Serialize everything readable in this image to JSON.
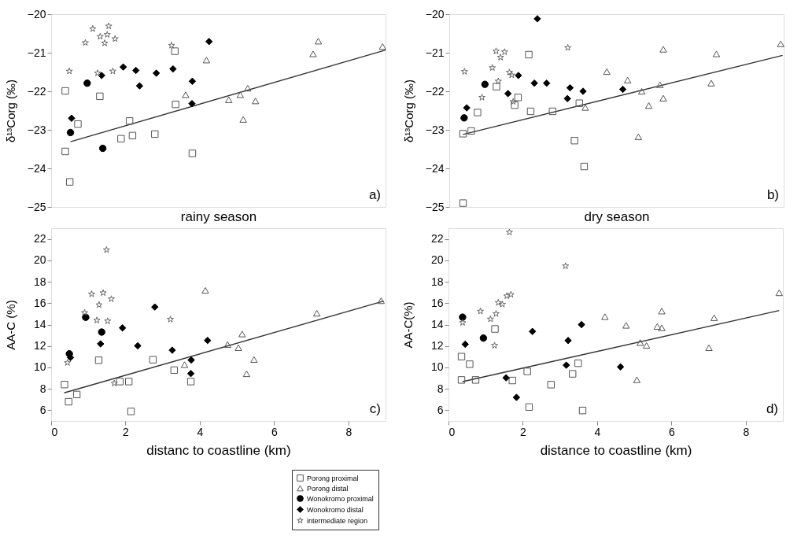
{
  "chart_data": [
    {
      "type": "scatter",
      "xlabel": "rainy season",
      "ylabel": "δ¹³Corg (‰)",
      "annotations": [
        "a)"
      ],
      "xlim": [
        0,
        9
      ],
      "xticks": [
        0,
        2,
        4,
        6,
        8
      ],
      "ylim": [
        -25,
        -20
      ],
      "yticks": [
        -25,
        -24,
        -23,
        -22,
        -21,
        -20
      ],
      "tick_labels": "y",
      "grid": false,
      "legend": false,
      "series": [
        {
          "color": "#555555",
          "marker": "square",
          "x": [
            0.38,
            0.38,
            0.5,
            0.72,
            1.31,
            2.11,
            1.88,
            2.19,
            2.79,
            3.33,
            3.35,
            3.8
          ],
          "values": [
            -21.99,
            -23.56,
            -24.35,
            -22.85,
            -22.13,
            -22.77,
            -23.23,
            -23.15,
            -23.11,
            -20.96,
            -22.34,
            -23.61
          ]
        },
        {
          "color": "#555555",
          "marker": "triangle",
          "x": [
            4.18,
            3.62,
            4.78,
            5.09,
            5.29,
            5.17,
            5.5,
            7.05,
            7.19,
            8.92
          ],
          "values": [
            -21.19,
            -22.09,
            -22.22,
            -22.09,
            -21.92,
            -22.73,
            -22.25,
            -21.03,
            -20.7,
            -20.84
          ]
        },
        {
          "color": "#000000",
          "marker": "circle",
          "x": [
            0.97,
            0.52,
            1.39
          ],
          "values": [
            -21.79,
            -23.07,
            -23.48
          ]
        },
        {
          "color": "#000000",
          "marker": "diamond",
          "x": [
            0.55,
            1.36,
            1.94,
            2.28,
            2.38,
            2.83,
            3.28,
            3.8,
            3.79,
            4.25
          ],
          "values": [
            -22.7,
            -21.59,
            -21.37,
            -21.46,
            -21.86,
            -21.53,
            -21.42,
            -21.74,
            -22.32,
            -20.71
          ]
        },
        {
          "color": "#666666",
          "marker": "star",
          "x": [
            0.49,
            0.92,
            1.12,
            1.32,
            1.44,
            1.51,
            1.55,
            1.72,
            1.25,
            1.66,
            3.24
          ],
          "values": [
            -21.48,
            -20.74,
            -20.38,
            -20.58,
            -20.75,
            -20.53,
            -20.31,
            -20.64,
            -21.53,
            -21.48,
            -20.81
          ]
        },
        {
          "type": "line",
          "color": "#333333",
          "x": [
            0.52,
            9.0
          ],
          "values": [
            -23.31,
            -20.93
          ]
        }
      ]
    },
    {
      "type": "scatter",
      "xlabel": "dry season",
      "ylabel": "δ¹³Corg (‰)",
      "annotations": [
        "b)"
      ],
      "xlim": [
        0,
        9
      ],
      "xticks": [
        0,
        2,
        4,
        6,
        8
      ],
      "ylim": [
        -25,
        -20
      ],
      "yticks": [
        -25,
        -24,
        -23,
        -22,
        -21,
        -20
      ],
      "tick_labels": "y",
      "grid": false,
      "legend": false,
      "series": [
        {
          "color": "#555555",
          "marker": "square",
          "x": [
            0.37,
            0.59,
            0.76,
            1.27,
            1.76,
            1.85,
            2.14,
            2.19,
            2.78,
            3.5,
            3.37,
            3.63,
            0.37
          ],
          "values": [
            -23.1,
            -23.03,
            -22.55,
            -21.88,
            -22.36,
            -22.16,
            -21.05,
            -22.52,
            -22.52,
            -22.31,
            -23.28,
            -23.95,
            -24.9
          ]
        },
        {
          "color": "#555555",
          "marker": "triangle",
          "x": [
            4.24,
            4.8,
            5.18,
            5.37,
            5.09,
            5.67,
            5.76,
            5.76,
            7.05,
            7.19,
            8.92,
            3.66
          ],
          "values": [
            -21.49,
            -21.71,
            -22.0,
            -22.37,
            -23.18,
            -21.83,
            -20.91,
            -22.18,
            -21.79,
            -21.03,
            -20.77,
            -22.42
          ]
        },
        {
          "color": "#000000",
          "marker": "circle",
          "x": [
            0.4,
            0.96
          ],
          "values": [
            -22.69,
            -21.82
          ]
        },
        {
          "color": "#000000",
          "marker": "diamond",
          "x": [
            0.47,
            2.37,
            1.86,
            1.58,
            2.29,
            2.62,
            3.25,
            3.18,
            3.6,
            4.67
          ],
          "values": [
            -22.43,
            -20.12,
            -21.59,
            -22.06,
            -21.79,
            -21.79,
            -21.91,
            -22.19,
            -22.0,
            -21.95
          ]
        },
        {
          "color": "#666666",
          "marker": "star",
          "x": [
            0.41,
            0.88,
            1.16,
            1.26,
            1.38,
            1.49,
            1.32,
            1.62,
            1.68,
            1.72,
            3.19
          ],
          "values": [
            -21.49,
            -22.16,
            -21.39,
            -20.96,
            -21.12,
            -20.98,
            -21.74,
            -21.51,
            -21.58,
            -22.27,
            -20.87
          ]
        },
        {
          "type": "line",
          "color": "#333333",
          "x": [
            0.37,
            8.97
          ],
          "values": [
            -23.12,
            -21.07
          ]
        }
      ]
    },
    {
      "type": "scatter",
      "xlabel": "distanc to coastline (km)",
      "ylabel": "AA-C (%)",
      "annotations": [
        "c)"
      ],
      "xlim": [
        0,
        9
      ],
      "xticks": [
        0,
        2,
        4,
        6,
        8
      ],
      "ylim": [
        5,
        23
      ],
      "yticks": [
        6,
        8,
        10,
        12,
        14,
        16,
        18,
        20,
        22
      ],
      "grid": false,
      "legend": "bottom right",
      "series": [
        {
          "name": "Porong proximal",
          "color": "#555555",
          "marker": "square",
          "x": [
            0.36,
            0.47,
            0.69,
            1.28,
            1.85,
            2.09,
            2.15,
            2.74,
            3.31,
            3.76
          ],
          "values": [
            8.4,
            6.8,
            7.47,
            10.67,
            8.68,
            8.68,
            5.89,
            10.72,
            9.75,
            8.68
          ]
        },
        {
          "name": "Porong distal",
          "color": "#555555",
          "marker": "triangle",
          "x": [
            4.15,
            3.59,
            4.75,
            5.04,
            5.14,
            5.46,
            5.26,
            7.15,
            8.88
          ],
          "values": [
            17.19,
            10.26,
            12.13,
            11.84,
            13.12,
            10.74,
            9.41,
            15.06,
            16.23
          ]
        },
        {
          "name": "Wonokromo proximal",
          "color": "#000000",
          "marker": "circle",
          "x": [
            0.49,
            0.93,
            1.36
          ],
          "values": [
            11.27,
            14.68,
            13.3
          ]
        },
        {
          "name": "Wonokromo distal",
          "color": "#000000",
          "marker": "diamond",
          "x": [
            1.33,
            2.33,
            1.92,
            2.79,
            3.26,
            3.77,
            3.76,
            4.21,
            0.52
          ],
          "values": [
            12.2,
            12.02,
            13.69,
            15.64,
            11.61,
            10.69,
            9.43,
            12.52,
            10.92
          ]
        },
        {
          "name": "intermediate region",
          "color": "#666666",
          "marker": "star",
          "x": [
            1.49,
            1.09,
            1.4,
            1.62,
            1.29,
            0.9,
            1.23,
            1.52,
            3.21,
            1.7,
            0.44
          ],
          "values": [
            20.97,
            16.85,
            16.96,
            16.39,
            15.84,
            15.11,
            14.4,
            14.33,
            14.49,
            8.52,
            10.44
          ]
        },
        {
          "type": "line",
          "color": "#333333",
          "x": [
            0.35,
            8.95
          ],
          "values": [
            7.63,
            16.19
          ]
        }
      ]
    },
    {
      "type": "scatter",
      "xlabel": "distance to coastline (km)",
      "ylabel": "AA-C(%)",
      "annotations": [
        "d)"
      ],
      "xlim": [
        0,
        9
      ],
      "xticks": [
        0,
        2,
        4,
        6,
        8
      ],
      "ylim": [
        5,
        23
      ],
      "yticks": [
        6,
        8,
        10,
        12,
        14,
        16,
        18,
        20,
        22
      ],
      "grid": false,
      "legend": false,
      "series": [
        {
          "color": "#555555",
          "marker": "square",
          "x": [
            0.35,
            0.35,
            0.57,
            0.73,
            1.25,
            1.72,
            2.12,
            2.17,
            2.76,
            3.34,
            3.49,
            3.61
          ],
          "values": [
            11.01,
            8.83,
            10.3,
            8.83,
            13.59,
            8.78,
            9.63,
            6.3,
            8.39,
            9.4,
            10.39,
            5.98
          ]
        },
        {
          "color": "#555555",
          "marker": "triangle",
          "x": [
            4.21,
            4.78,
            5.16,
            5.33,
            5.07,
            5.62,
            5.74,
            5.74,
            7.01,
            7.15,
            8.9
          ],
          "values": [
            14.74,
            13.93,
            12.32,
            12.05,
            8.85,
            13.82,
            13.7,
            15.26,
            11.84,
            14.64,
            16.97
          ]
        },
        {
          "color": "#000000",
          "marker": "circle",
          "x": [
            0.38,
            0.94
          ],
          "values": [
            14.69,
            12.74
          ]
        },
        {
          "color": "#000000",
          "marker": "diamond",
          "x": [
            0.45,
            2.26,
            3.22,
            3.58,
            3.17,
            4.63,
            1.55,
            1.83
          ],
          "values": [
            12.16,
            13.36,
            12.51,
            14.0,
            10.21,
            10.05,
            9.03,
            7.2
          ]
        },
        {
          "color": "#666666",
          "marker": "star",
          "x": [
            1.64,
            3.15,
            0.38,
            0.86,
            1.13,
            1.28,
            1.34,
            1.45,
            1.57,
            1.68,
            1.24
          ],
          "values": [
            22.62,
            19.47,
            14.18,
            15.24,
            14.51,
            15.01,
            16.05,
            15.89,
            16.67,
            16.8,
            12.05
          ]
        },
        {
          "type": "line",
          "color": "#333333",
          "x": [
            0.38,
            8.9
          ],
          "values": [
            8.67,
            15.31
          ]
        }
      ]
    }
  ]
}
